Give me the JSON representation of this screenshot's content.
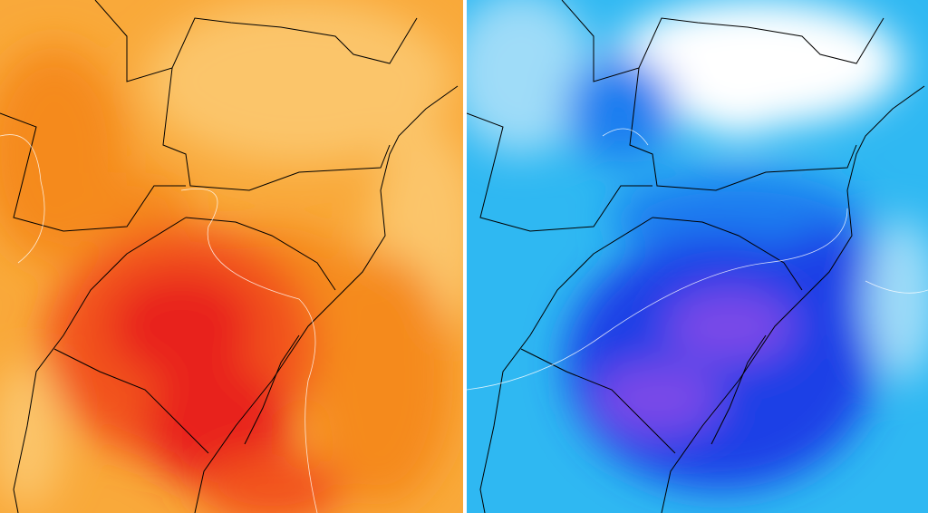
{
  "panels": [
    {
      "id": "left",
      "palette": {
        "background": "#f9a93a",
        "light": "#fbc56a",
        "mid": "#f58a1f",
        "strong": "#f2521a",
        "max": "#e8231a"
      }
    },
    {
      "id": "right",
      "palette": {
        "background": "#2fb8f2",
        "light": "#9fdcf8",
        "pale": "#ffffff",
        "mid": "#1a7ef0",
        "strong": "#1c3fe6",
        "max": "#7a4ae8"
      }
    }
  ],
  "boundary_color": "#000000",
  "contour_color": "#ffffff"
}
